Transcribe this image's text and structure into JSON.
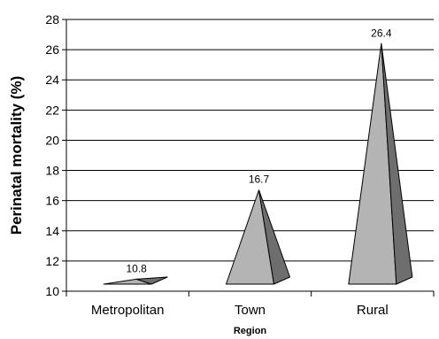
{
  "chart_data": {
    "type": "bar",
    "bar_shape": "pyramid",
    "categories": [
      "Metropolitan",
      "Town",
      "Rural"
    ],
    "values": [
      10.8,
      16.7,
      26.4
    ],
    "data_labels": [
      "10.8",
      "16.7",
      "26.4"
    ],
    "xlabel": "Region",
    "ylabel": "Perinatal mortality (%)",
    "ylim": [
      10,
      28
    ],
    "yticks": [
      10,
      12,
      14,
      16,
      18,
      20,
      22,
      24,
      26,
      28
    ],
    "grid": true,
    "colors": {
      "face_light": "#b4b4b4",
      "face_dark": "#6e6e6e",
      "outline": "#000000",
      "grid": "#000000"
    }
  }
}
